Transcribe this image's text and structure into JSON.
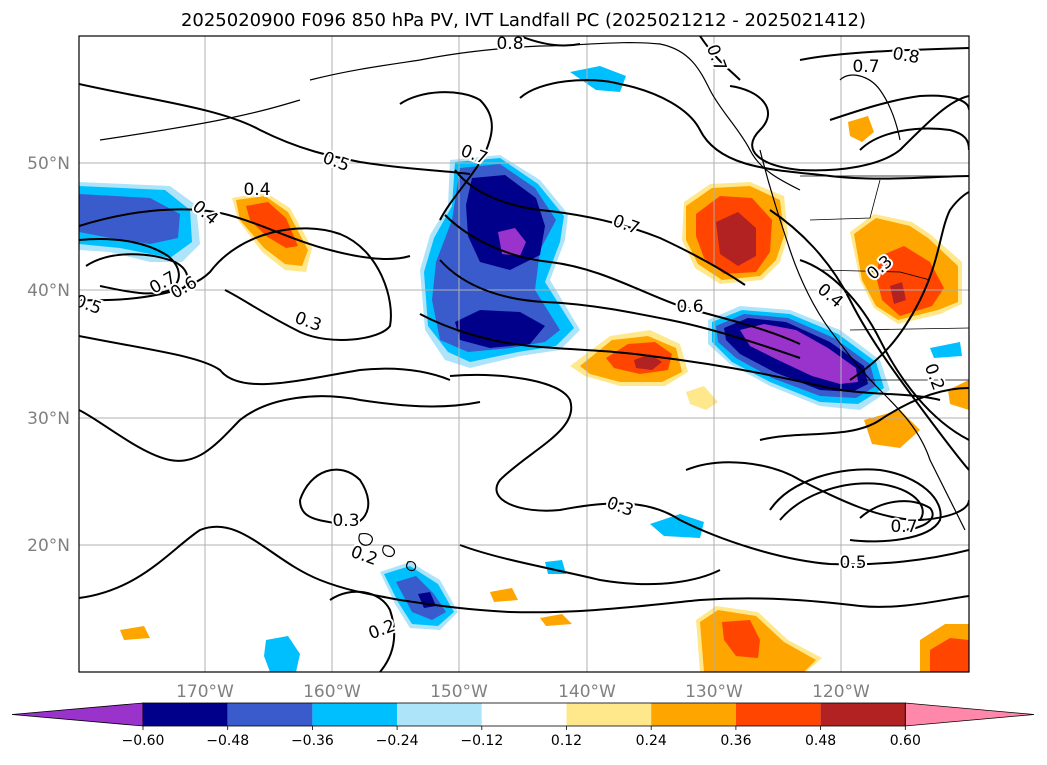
{
  "title": "2025020900 F096 850 hPa PV, IVT Landfall PC (2025021212 - 2025021412)",
  "map": {
    "lon_labels": [
      "170°W",
      "160°W",
      "150°W",
      "140°W",
      "130°W",
      "120°W"
    ],
    "lat_labels": [
      "50°N",
      "40°N",
      "30°N",
      "20°N"
    ],
    "contour_labels": [
      {
        "text": "0.8",
        "ref": "contour-label"
      },
      {
        "text": "0.7",
        "ref": "contour-label"
      },
      {
        "text": "0.8",
        "ref": "contour-label"
      },
      {
        "text": "0.7",
        "ref": "contour-label"
      },
      {
        "text": "0.5",
        "ref": "contour-label"
      },
      {
        "text": "0.7",
        "ref": "contour-label"
      },
      {
        "text": "0.4",
        "ref": "contour-label"
      },
      {
        "text": "0.4",
        "ref": "contour-label"
      },
      {
        "text": "0.7",
        "ref": "contour-label"
      },
      {
        "text": "0.7",
        "ref": "contour-label"
      },
      {
        "text": "0.6",
        "ref": "contour-label"
      },
      {
        "text": "0.5",
        "ref": "contour-label"
      },
      {
        "text": "0.3",
        "ref": "contour-label"
      },
      {
        "text": "0.6",
        "ref": "contour-label"
      },
      {
        "text": "0.4",
        "ref": "contour-label"
      },
      {
        "text": "0.3",
        "ref": "contour-label"
      },
      {
        "text": "0.2",
        "ref": "contour-label"
      },
      {
        "text": "0.3",
        "ref": "contour-label"
      },
      {
        "text": "0.3",
        "ref": "contour-label"
      },
      {
        "text": "0.2",
        "ref": "contour-label"
      },
      {
        "text": "0.7",
        "ref": "contour-label"
      },
      {
        "text": "0.5",
        "ref": "contour-label"
      },
      {
        "text": "0.2",
        "ref": "contour-label"
      }
    ]
  },
  "colorbar": {
    "ticks": [
      "−0.60",
      "−0.48",
      "−0.36",
      "−0.24",
      "−0.12",
      "0.12",
      "0.24",
      "0.36",
      "0.48",
      "0.60"
    ],
    "colors": [
      "#9933cc",
      "#00008b",
      "#3a5bcc",
      "#00bfff",
      "#aee4fa",
      "#ffffff",
      "#ffe88c",
      "#ffa500",
      "#ff4500",
      "#b22222",
      "#ff88aa"
    ]
  },
  "palette": {
    "vlow": "#9933cc",
    "navy": "#00008b",
    "blue": "#3a5bcc",
    "sky": "#00bfff",
    "pale": "#aee4fa",
    "yellow": "#ffe88c",
    "orange": "#ffa500",
    "redorange": "#ff4500",
    "firebrick": "#b22222"
  }
}
